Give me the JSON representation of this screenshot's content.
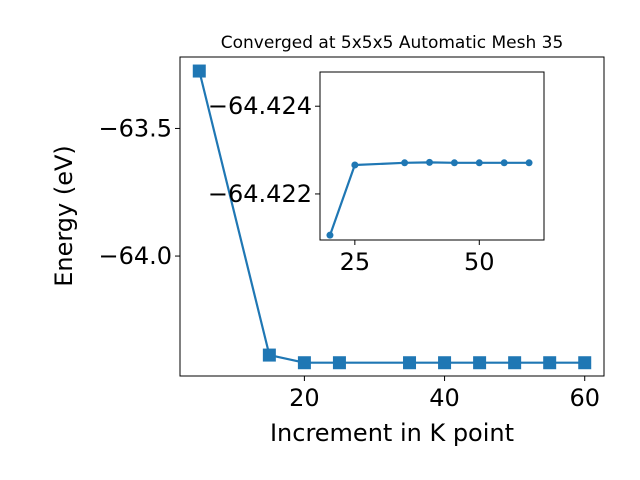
{
  "chart_data": [
    {
      "type": "line",
      "title": "Converged at 5x5x5 Automatic Mesh 35",
      "xlabel": "Increment in K point",
      "ylabel": "Energy (eV)",
      "x": [
        5,
        15,
        20,
        25,
        35,
        40,
        45,
        50,
        55,
        60
      ],
      "series": [
        {
          "values": [
            -63.275,
            -64.388,
            -64.418,
            -64.418,
            -64.418,
            -64.418,
            -64.418,
            -64.418,
            -64.418,
            -64.418
          ]
        }
      ],
      "xlim": [
        2.25,
        62.75
      ],
      "ylim": [
        -64.47,
        -63.22
      ],
      "xticks": [
        20,
        40,
        60
      ],
      "yticks": [
        -63.5,
        -64.0
      ],
      "xtick_labels": [
        "20",
        "40",
        "60"
      ],
      "ytick_labels": [
        "−63.5",
        "−64.0"
      ],
      "marker": "square",
      "color": "#1f77b4",
      "grid": false,
      "legend": false
    },
    {
      "type": "line",
      "title": "",
      "inset": true,
      "x": [
        20,
        25,
        35,
        40,
        45,
        50,
        55,
        60
      ],
      "series": [
        {
          "values": [
            -64.42106,
            -64.42266,
            -64.42271,
            -64.42272,
            -64.42271,
            -64.42271,
            -64.42271,
            -64.42271
          ]
        }
      ],
      "xlim": [
        18,
        63
      ],
      "ylim": [
        -64.42095,
        -64.42478
      ],
      "xticks": [
        25,
        50
      ],
      "yticks": [
        -64.424,
        -64.422
      ],
      "xtick_labels": [
        "25",
        "50"
      ],
      "ytick_labels": [
        "−64.424",
        "−64.422"
      ],
      "marker": "circle",
      "color": "#1f77b4",
      "grid": false,
      "legend": false
    }
  ]
}
